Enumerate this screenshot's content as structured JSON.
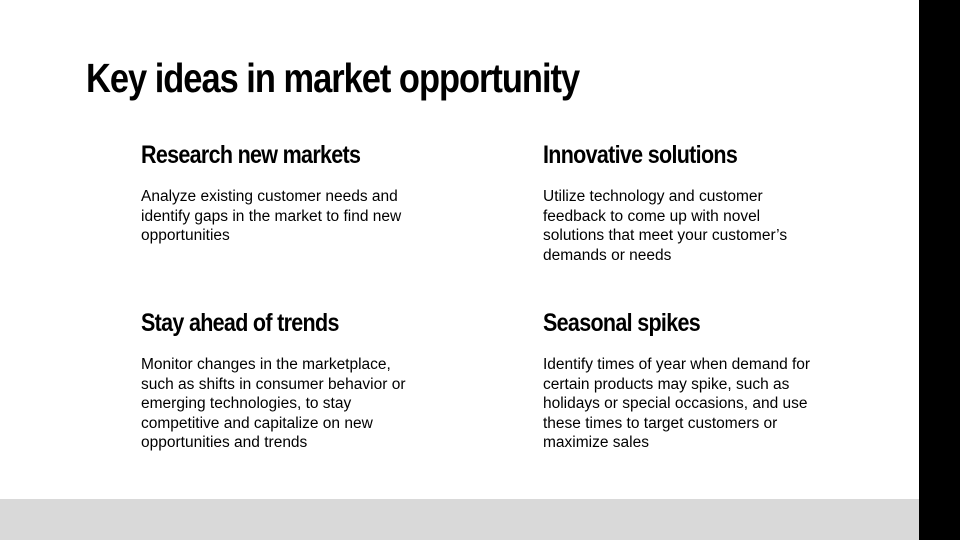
{
  "slide": {
    "title": "Key ideas in market opportunity",
    "cards": [
      {
        "heading": "Research new markets",
        "body": "Analyze existing customer needs and identify gaps in the market to find new opportunities"
      },
      {
        "heading": "Innovative solutions",
        "body": "Utilize technology and customer feedback to come up with novel solutions that meet your customer’s demands or needs"
      },
      {
        "heading": "Stay ahead of trends",
        "body": "Monitor changes in the marketplace, such as shifts in consumer behavior or emerging technologies, to stay competitive and capitalize on new opportunities and trends"
      },
      {
        "heading": "Seasonal spikes",
        "body": "Identify times of year when demand for certain products may spike, such as holidays or special occasions, and use these times to target customers or maximize sales"
      }
    ]
  },
  "colors": {
    "background": "#ffffff",
    "text": "#000000",
    "right_bar": "#000000",
    "bottom_bar": "#d9d9d9"
  }
}
